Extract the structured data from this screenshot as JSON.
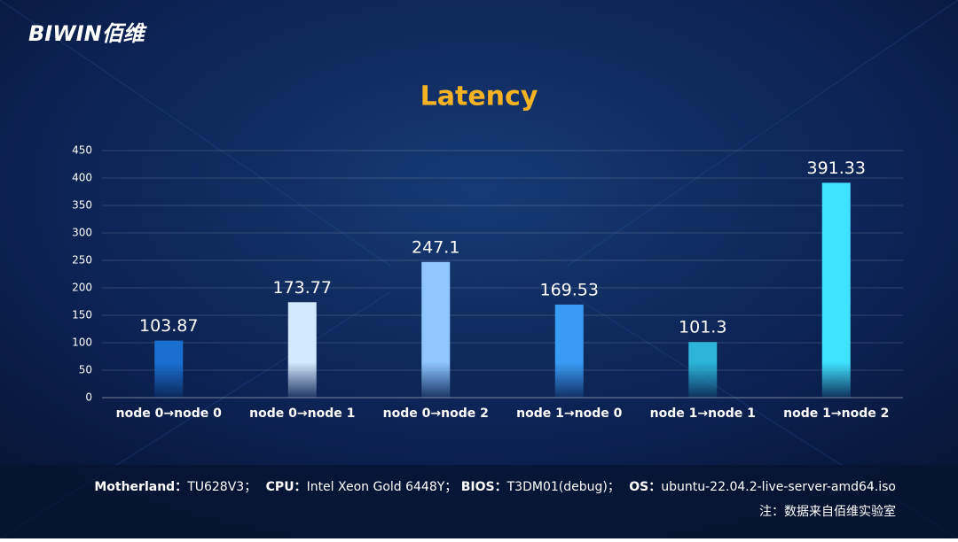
{
  "logo": "BIWIN佰维",
  "chart_data": {
    "type": "bar",
    "title": "Latency",
    "categories": [
      "node 0→node 0",
      "node 0→node 1",
      "node 0→node 2",
      "node 1→node 0",
      "node 1→node 1",
      "node 1→node 2"
    ],
    "values": [
      103.87,
      173.77,
      247.1,
      169.53,
      101.3,
      391.33
    ],
    "colors": [
      "#1a6fd1",
      "#d3e9ff",
      "#8fc6ff",
      "#3a9bf5",
      "#2cb5d8",
      "#3fe2ff"
    ],
    "ylim": [
      0,
      450
    ],
    "yticks": [
      0,
      50,
      100,
      150,
      200,
      250,
      300,
      350,
      400,
      450
    ],
    "grid": true
  },
  "footer": {
    "specs": [
      {
        "label": "Motherland：",
        "value": "TU628V3；"
      },
      {
        "label": "CPU：",
        "value": "Intel Xeon Gold 6448Y；"
      },
      {
        "label": "BIOS：",
        "value": "T3DM01(debug)；"
      },
      {
        "label": "OS：",
        "value": "ubuntu-22.04.2-live-server-amd64.iso"
      }
    ],
    "note": "注：数据来自佰维实验室"
  }
}
